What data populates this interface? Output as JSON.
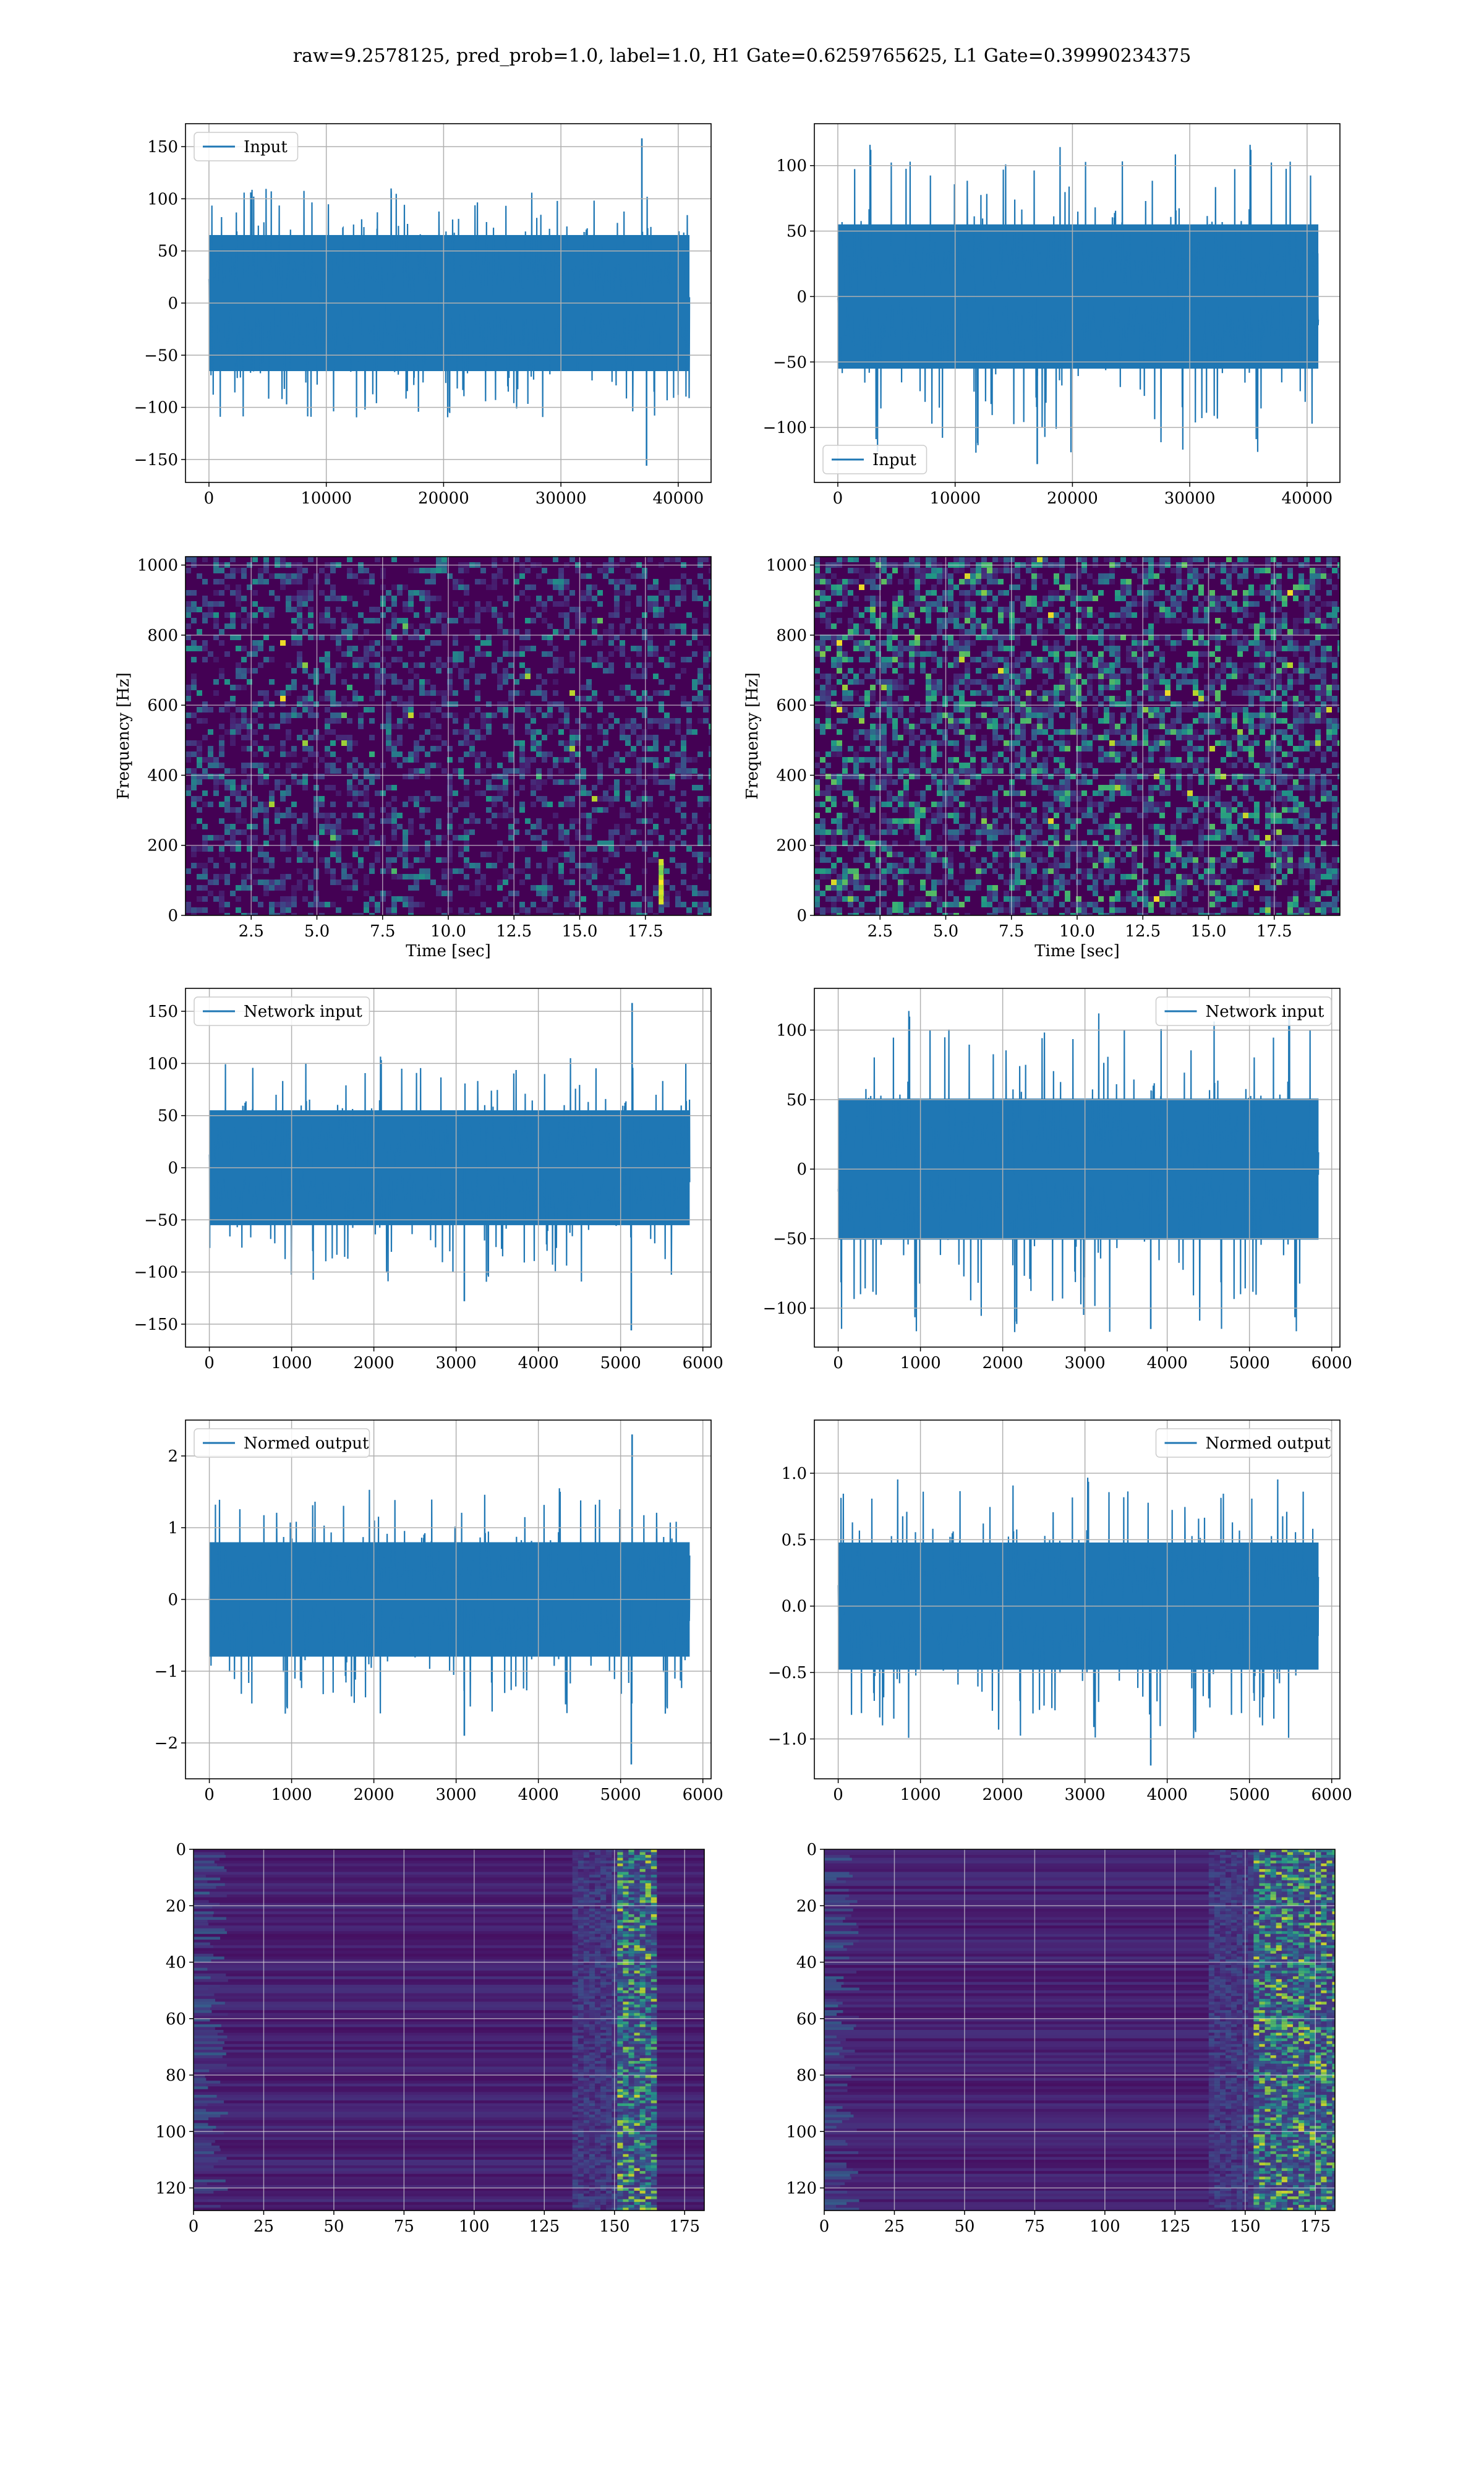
{
  "figure": {
    "title": "raw=9.2578125, pred_prob=1.0, label=1.0, H1 Gate=0.6259765625, L1 Gate=0.39990234375"
  },
  "colors": {
    "series": "#1f77b4",
    "grid": "#b0b0b0",
    "viridis_dark": "#440154",
    "viridis_blue": "#31688e",
    "viridis_green": "#35b779",
    "viridis_yellow": "#fde725"
  },
  "chart_data": [
    {
      "id": "h1-input",
      "type": "line",
      "legend": "Input",
      "legend_loc": "upper-left",
      "xlim": [
        -2000,
        42800
      ],
      "ylim": [
        -172,
        172
      ],
      "xticks": [
        0,
        10000,
        20000,
        30000,
        40000
      ],
      "yticks": [
        -150,
        -100,
        -50,
        0,
        50,
        100,
        150
      ],
      "ytick_labels": [
        "−150",
        "−100",
        "−50",
        "0",
        "50",
        "100",
        "150"
      ],
      "series": [
        {
          "x_start": 0,
          "x_end": 40959,
          "amp_mean": 45,
          "amp_max": 110,
          "spikes": [
            {
              "x": 36900,
              "y": 158
            },
            {
              "x": 37300,
              "y": -156
            }
          ]
        }
      ],
      "xlabel": "",
      "ylabel": ""
    },
    {
      "id": "l1-input",
      "type": "line",
      "legend": "Input",
      "legend_loc": "lower-left",
      "xlim": [
        -2000,
        42800
      ],
      "ylim": [
        -142,
        132
      ],
      "xticks": [
        0,
        10000,
        20000,
        30000,
        40000
      ],
      "yticks": [
        -100,
        -50,
        0,
        50,
        100
      ],
      "ytick_labels": [
        "−100",
        "−50",
        "0",
        "50",
        "100"
      ],
      "series": [
        {
          "x_start": 0,
          "x_end": 40959,
          "amp_mean": 38,
          "amp_max": 120,
          "spikes": [
            {
              "x": 17000,
              "y": -128
            }
          ]
        }
      ],
      "xlabel": "",
      "ylabel": ""
    },
    {
      "id": "h1-spectrogram",
      "type": "heatmap",
      "colormap": "viridis",
      "xlim": [
        0,
        20
      ],
      "ylim": [
        0,
        1024
      ],
      "xticks": [
        2.5,
        5.0,
        7.5,
        10.0,
        12.5,
        15.0,
        17.5
      ],
      "xtick_labels": [
        "2.5",
        "5.0",
        "7.5",
        "10.0",
        "12.5",
        "15.0",
        "17.5"
      ],
      "yticks": [
        0,
        200,
        400,
        600,
        800,
        1000
      ],
      "xlabel": "Time [sec]",
      "ylabel": "Frequency [Hz]",
      "hot_spots": [
        {
          "t": 18.1,
          "f_min": 40,
          "f_max": 160
        }
      ]
    },
    {
      "id": "l1-spectrogram",
      "type": "heatmap",
      "colormap": "viridis",
      "xlim": [
        0,
        20
      ],
      "ylim": [
        0,
        1024
      ],
      "xticks": [
        2.5,
        5.0,
        7.5,
        10.0,
        12.5,
        15.0,
        17.5
      ],
      "xtick_labels": [
        "2.5",
        "5.0",
        "7.5",
        "10.0",
        "12.5",
        "15.0",
        "17.5"
      ],
      "yticks": [
        0,
        200,
        400,
        600,
        800,
        1000
      ],
      "xlabel": "Time [sec]",
      "ylabel": "Frequency [Hz]",
      "hot_spots": []
    },
    {
      "id": "h1-network-input",
      "type": "line",
      "legend": "Network input",
      "legend_loc": "upper-left",
      "xlim": [
        -290,
        6100
      ],
      "ylim": [
        -172,
        172
      ],
      "xticks": [
        0,
        1000,
        2000,
        3000,
        4000,
        5000,
        6000
      ],
      "yticks": [
        -150,
        -100,
        -50,
        0,
        50,
        100,
        150
      ],
      "ytick_labels": [
        "−150",
        "−100",
        "−50",
        "0",
        "50",
        "100",
        "150"
      ],
      "series": [
        {
          "x_start": 0,
          "x_end": 5840,
          "amp_mean": 38,
          "amp_max": 110,
          "spikes": [
            {
              "x": 5140,
              "y": 158
            },
            {
              "x": 5130,
              "y": -156
            },
            {
              "x": 3100,
              "y": -128
            }
          ]
        }
      ],
      "xlabel": "",
      "ylabel": ""
    },
    {
      "id": "l1-network-input",
      "type": "line",
      "legend": "Network input",
      "legend_loc": "upper-right",
      "xlim": [
        -290,
        6100
      ],
      "ylim": [
        -128,
        130
      ],
      "xticks": [
        0,
        1000,
        2000,
        3000,
        4000,
        5000,
        6000
      ],
      "yticks": [
        -100,
        -50,
        0,
        50,
        100
      ],
      "ytick_labels": [
        "−100",
        "−50",
        "0",
        "50",
        "100"
      ],
      "series": [
        {
          "x_start": 0,
          "x_end": 5840,
          "amp_mean": 35,
          "amp_max": 118,
          "spikes": [
            {
              "x": 3800,
              "y": -115
            }
          ]
        }
      ],
      "xlabel": "",
      "ylabel": ""
    },
    {
      "id": "h1-normed-output",
      "type": "line",
      "legend": "Normed output",
      "legend_loc": "upper-left",
      "xlim": [
        -290,
        6100
      ],
      "ylim": [
        -2.5,
        2.5
      ],
      "xticks": [
        0,
        1000,
        2000,
        3000,
        4000,
        5000,
        6000
      ],
      "yticks": [
        -2,
        -1,
        0,
        1,
        2
      ],
      "ytick_labels": [
        "−2",
        "−1",
        "0",
        "1",
        "2"
      ],
      "series": [
        {
          "x_start": 0,
          "x_end": 5840,
          "amp_mean": 0.55,
          "amp_max": 1.6,
          "spikes": [
            {
              "x": 5140,
              "y": 2.3
            },
            {
              "x": 5130,
              "y": -2.3
            },
            {
              "x": 3100,
              "y": -1.9
            }
          ]
        }
      ],
      "xlabel": "",
      "ylabel": ""
    },
    {
      "id": "l1-normed-output",
      "type": "line",
      "legend": "Normed output",
      "legend_loc": "upper-right",
      "xlim": [
        -290,
        6100
      ],
      "ylim": [
        -1.3,
        1.4
      ],
      "xticks": [
        0,
        1000,
        2000,
        3000,
        4000,
        5000,
        6000
      ],
      "yticks": [
        -1.0,
        -0.5,
        0.0,
        0.5,
        1.0
      ],
      "ytick_labels": [
        "−1.0",
        "−0.5",
        "0.0",
        "0.5",
        "1.0"
      ],
      "series": [
        {
          "x_start": 0,
          "x_end": 5840,
          "amp_mean": 0.33,
          "amp_max": 1.0,
          "spikes": [
            {
              "x": 3800,
              "y": -1.2
            }
          ]
        }
      ],
      "xlabel": "",
      "ylabel": ""
    },
    {
      "id": "h1-feature-map",
      "type": "heatmap",
      "colormap": "viridis",
      "xlim": [
        0,
        182
      ],
      "ylim": [
        128,
        0
      ],
      "xticks": [
        0,
        25,
        50,
        75,
        100,
        125,
        150,
        175
      ],
      "yticks": [
        0,
        20,
        40,
        60,
        80,
        100,
        120
      ],
      "xlabel": "",
      "ylabel": "",
      "active_band": [
        150,
        165
      ]
    },
    {
      "id": "l1-feature-map",
      "type": "heatmap",
      "colormap": "viridis",
      "xlim": [
        0,
        182
      ],
      "ylim": [
        128,
        0
      ],
      "xticks": [
        0,
        25,
        50,
        75,
        100,
        125,
        150,
        175
      ],
      "yticks": [
        0,
        20,
        40,
        60,
        80,
        100,
        120
      ],
      "xlabel": "",
      "ylabel": "",
      "active_band": [
        152,
        182
      ]
    }
  ]
}
